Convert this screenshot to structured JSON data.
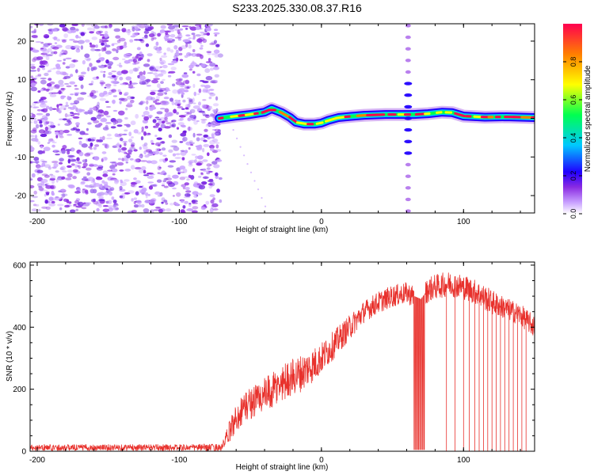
{
  "figure_title": "S233.2025.330.08.37.R16",
  "colors": {
    "line": "#e8312c",
    "colormap": [
      "#ffffff",
      "#c8a0ff",
      "#8a2be2",
      "#2000ff",
      "#00c8ff",
      "#00ff50",
      "#ffff00",
      "#ff7f00",
      "#ff0050"
    ]
  },
  "chart_data": [
    {
      "type": "heatmap",
      "title": "",
      "xlabel": "Height of straight line (km)",
      "ylabel": "Frequency (Hz)",
      "xlim": [
        -205,
        150
      ],
      "ylim": [
        -24.5,
        24.5
      ],
      "x_ticks": [
        -200,
        -100,
        0,
        100
      ],
      "y_ticks": [
        -20,
        -10,
        0,
        10,
        20
      ],
      "noise_region_x": [
        -205,
        -71
      ],
      "tone_frequency_track": {
        "x": [
          -72,
          -60,
          -50,
          -40,
          -35,
          -28,
          -22,
          -18,
          -12,
          -5,
          0,
          5,
          12,
          20,
          30,
          45,
          55,
          60,
          65,
          75,
          85,
          92,
          100,
          115,
          130,
          140,
          150
        ],
        "frequency": [
          0,
          0.6,
          1,
          1.6,
          2.5,
          1.5,
          0.2,
          -1,
          -1.5,
          -1.5,
          -1.2,
          -0.5,
          0.2,
          0.5,
          0.8,
          1,
          1,
          1,
          1,
          1.2,
          1.6,
          1.5,
          0.6,
          0.3,
          0.4,
          0.3,
          0.2
        ]
      },
      "vertical_stripe_x": 61,
      "colorbar": {
        "label": "Normalized spectral amplitude",
        "range": [
          0,
          1
        ],
        "ticks": [
          "0.0",
          "0.2",
          "0.4",
          "0.6",
          "0.8"
        ]
      }
    },
    {
      "type": "line",
      "title": "",
      "xlabel": "Height of straight line (km)",
      "ylabel": "SNR (10 * v/v)",
      "xlim": [
        -205,
        150
      ],
      "ylim": [
        0,
        610
      ],
      "x_ticks": [
        -200,
        -100,
        0,
        100
      ],
      "y_ticks": [
        0,
        200,
        400,
        600
      ],
      "series": [
        {
          "name": "SNR",
          "x": [
            -205,
            -150,
            -100,
            -70,
            -62,
            -55,
            -45,
            -35,
            -25,
            -15,
            -5,
            0,
            10,
            20,
            30,
            40,
            50,
            60,
            65,
            70,
            75,
            80,
            90,
            100,
            110,
            120,
            130,
            140,
            150
          ],
          "mean": [
            12,
            12,
            12,
            12,
            90,
            140,
            170,
            190,
            230,
            250,
            280,
            300,
            350,
            400,
            450,
            480,
            500,
            510,
            500,
            490,
            520,
            530,
            540,
            530,
            510,
            480,
            460,
            440,
            400
          ],
          "spread": [
            10,
            10,
            10,
            12,
            45,
            50,
            55,
            60,
            60,
            60,
            55,
            50,
            45,
            40,
            35,
            35,
            35,
            35,
            35,
            35,
            40,
            40,
            40,
            40,
            40,
            40,
            35,
            35,
            35
          ],
          "dropout_bands_x": [
            [
              65,
              73
            ]
          ],
          "dropout_spikes_x": [
            88,
            94,
            100,
            104,
            108,
            111,
            114,
            117,
            120,
            123,
            126,
            129,
            132,
            135,
            138,
            141,
            144
          ]
        }
      ]
    }
  ]
}
